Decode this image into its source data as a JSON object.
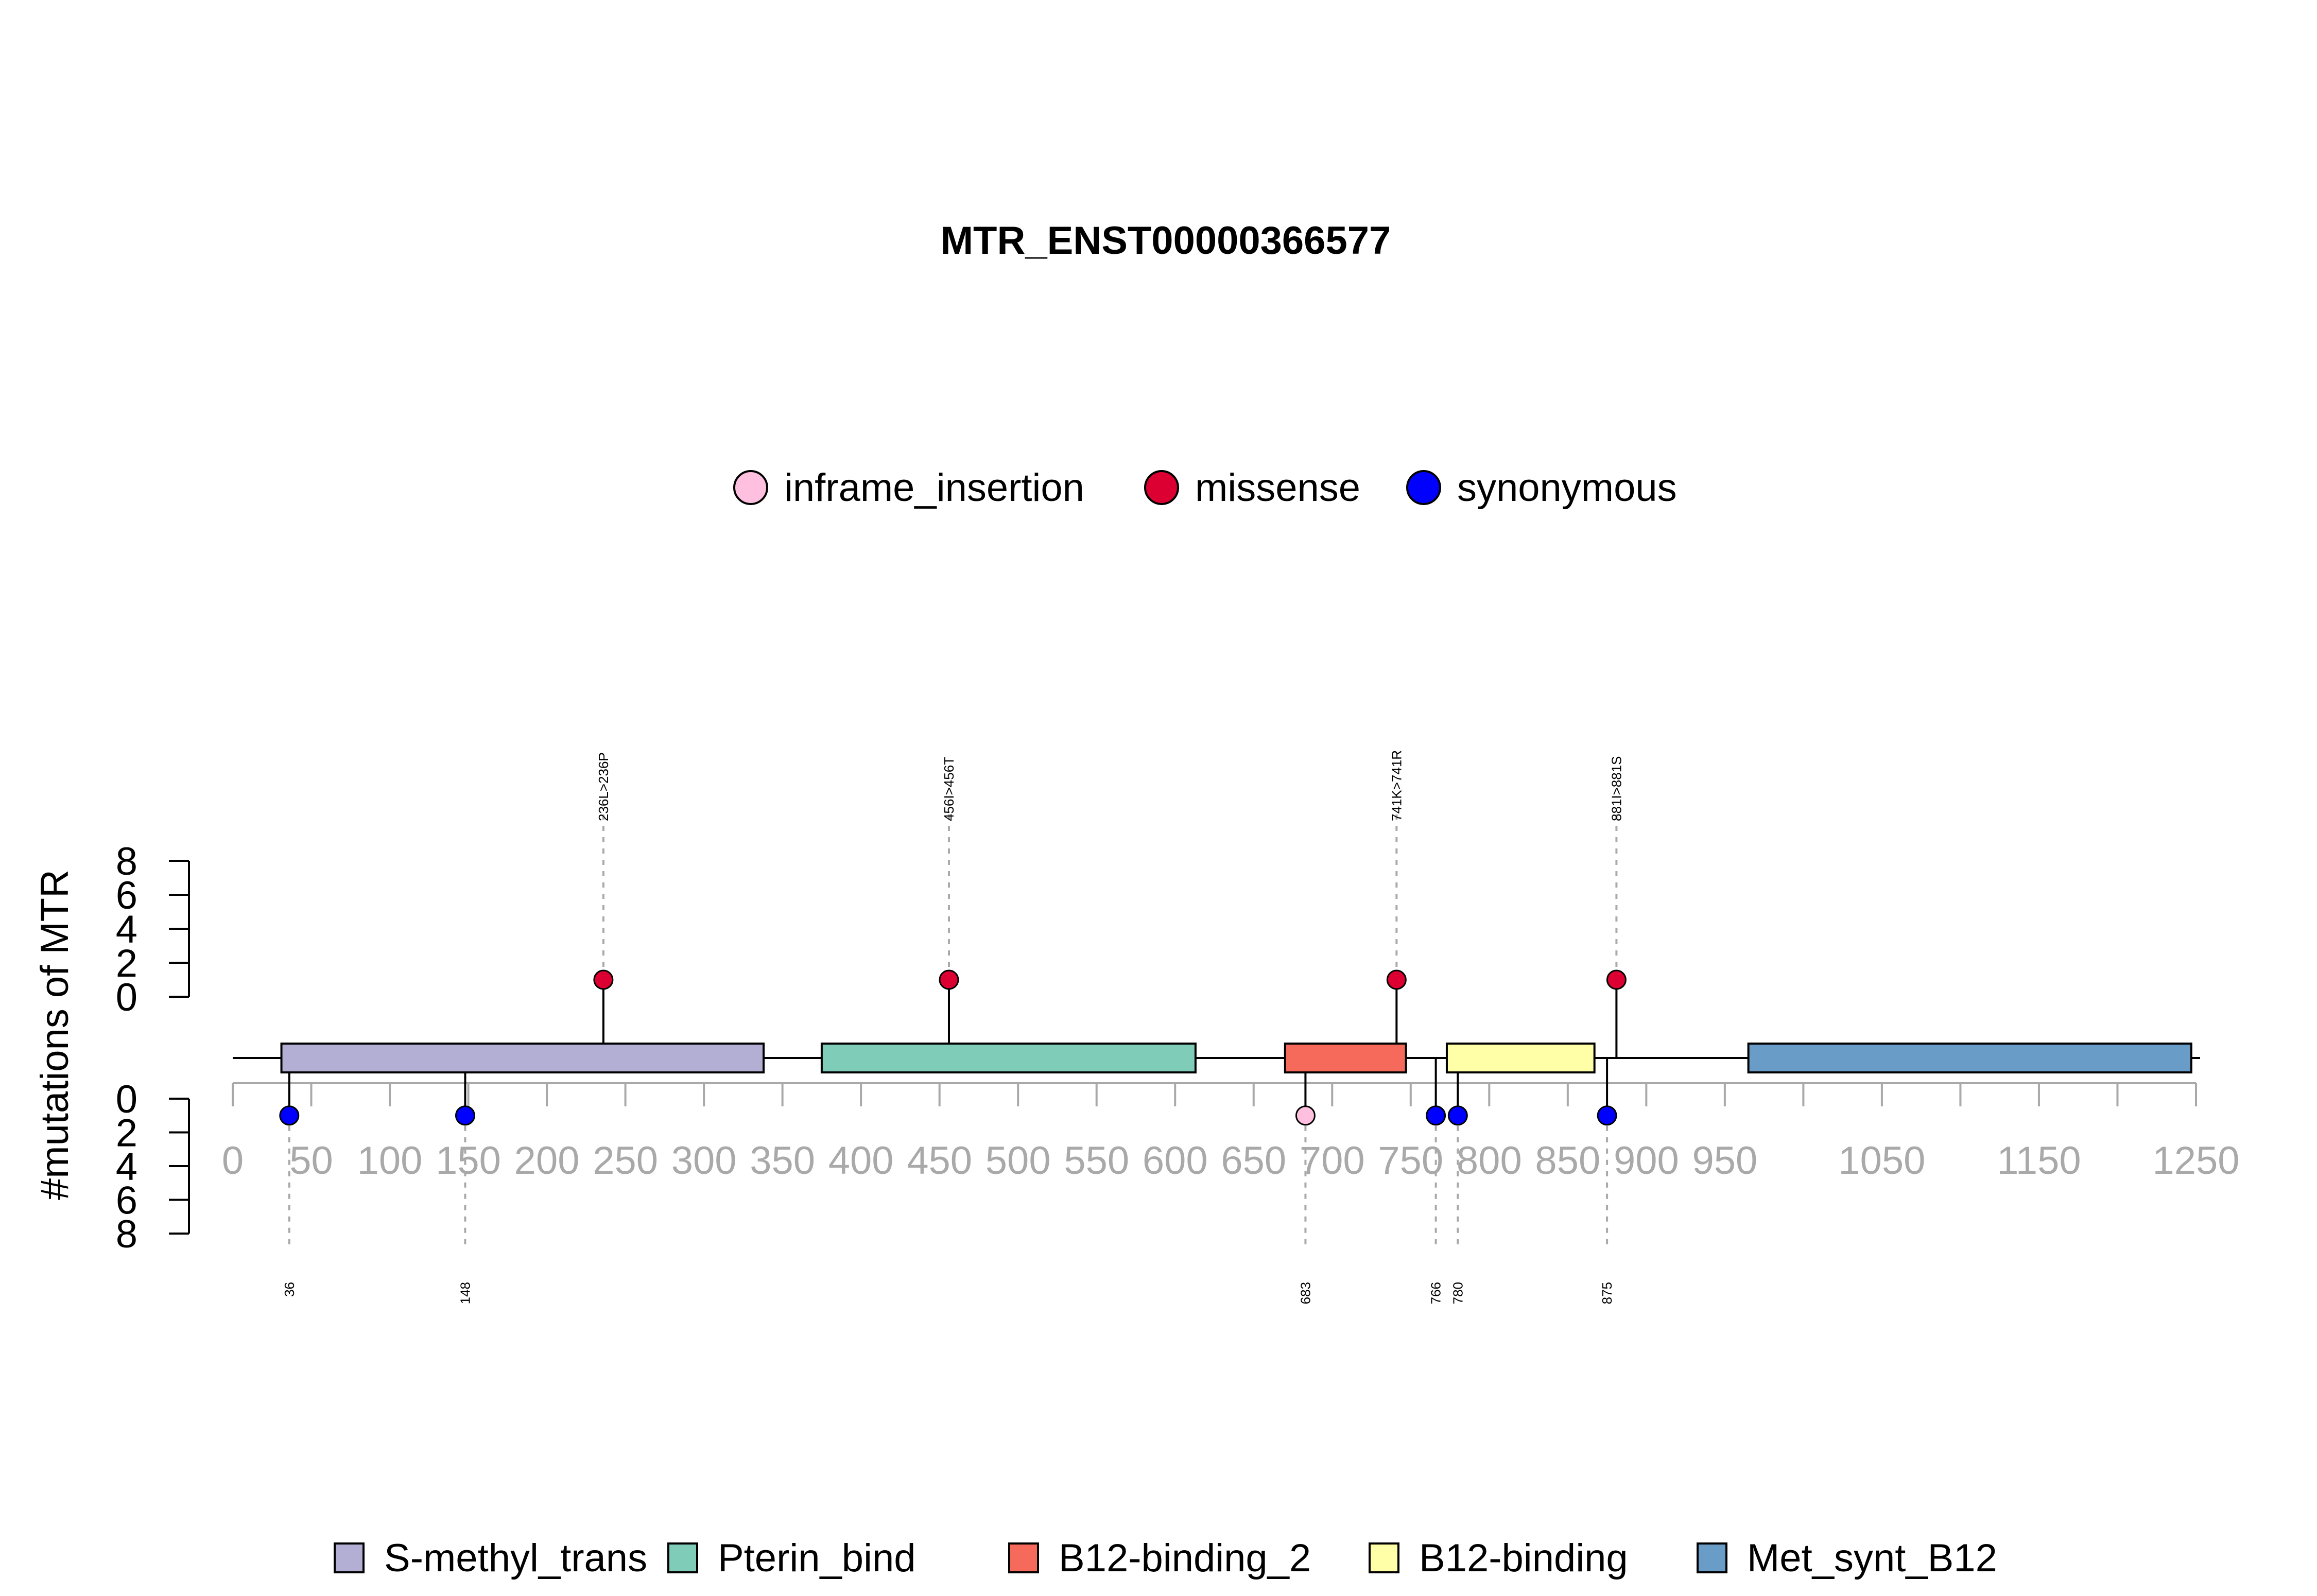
{
  "chart_data": {
    "type": "lollipop",
    "title": "MTR_ENST00000366577",
    "ylabel": "#mutations of MTR",
    "xlim": [
      0,
      1250
    ],
    "x_ticks": [
      0,
      50,
      100,
      150,
      200,
      250,
      300,
      350,
      400,
      450,
      500,
      550,
      600,
      650,
      700,
      750,
      800,
      850,
      900,
      950,
      1000,
      1050,
      1100,
      1150,
      1200,
      1250
    ],
    "x_tick_labels": [
      "0",
      "50",
      "100",
      "150",
      "200",
      "250",
      "300",
      "350",
      "400",
      "450",
      "500",
      "550",
      "600",
      "650",
      "700",
      "750",
      "800",
      "850",
      "900",
      "950",
      "",
      "1050",
      "",
      "1150",
      "",
      "1250"
    ],
    "y_ticks_top": [
      "8",
      "6",
      "4",
      "2",
      "0"
    ],
    "y_ticks_bottom": [
      "0",
      "2",
      "4",
      "6",
      "8"
    ],
    "ylim": [
      0,
      8
    ],
    "mutation_types": [
      {
        "name": "inframe_insertion",
        "color": "#FFC0E0"
      },
      {
        "name": "missense",
        "color": "#DC0032"
      },
      {
        "name": "synonymous",
        "color": "#0000FF"
      }
    ],
    "domains": [
      {
        "name": "S-methyl_trans",
        "start": 31,
        "end": 338,
        "color": "#B3AED3"
      },
      {
        "name": "Pterin_bind",
        "start": 375,
        "end": 613,
        "color": "#7FCDB9"
      },
      {
        "name": "B12-binding_2",
        "start": 670,
        "end": 747,
        "color": "#F56A5A"
      },
      {
        "name": "B12-binding",
        "start": 773,
        "end": 867,
        "color": "#FFFFA8"
      },
      {
        "name": "Met_synt_B12",
        "start": 965,
        "end": 1247,
        "color": "#6A9CC8"
      }
    ],
    "mutations_top": [
      {
        "pos": 236,
        "label": "236L>236P",
        "type": "missense",
        "count": 1
      },
      {
        "pos": 456,
        "label": "456I>456T",
        "type": "missense",
        "count": 1
      },
      {
        "pos": 741,
        "label": "741K>741R",
        "type": "missense",
        "count": 1
      },
      {
        "pos": 881,
        "label": "881I>881S",
        "type": "missense",
        "count": 1
      }
    ],
    "mutations_bottom": [
      {
        "pos": 36,
        "label": "36",
        "type": "synonymous",
        "count": 1
      },
      {
        "pos": 148,
        "label": "148",
        "type": "synonymous",
        "count": 1
      },
      {
        "pos": 683,
        "label": "683",
        "type": "inframe_insertion",
        "count": 1
      },
      {
        "pos": 766,
        "label": "766",
        "type": "synonymous",
        "count": 1
      },
      {
        "pos": 780,
        "label": "780",
        "type": "synonymous",
        "count": 1
      },
      {
        "pos": 875,
        "label": "875",
        "type": "synonymous",
        "count": 1
      }
    ],
    "legend_position": "top-center",
    "domain_legend_position": "bottom-center"
  }
}
